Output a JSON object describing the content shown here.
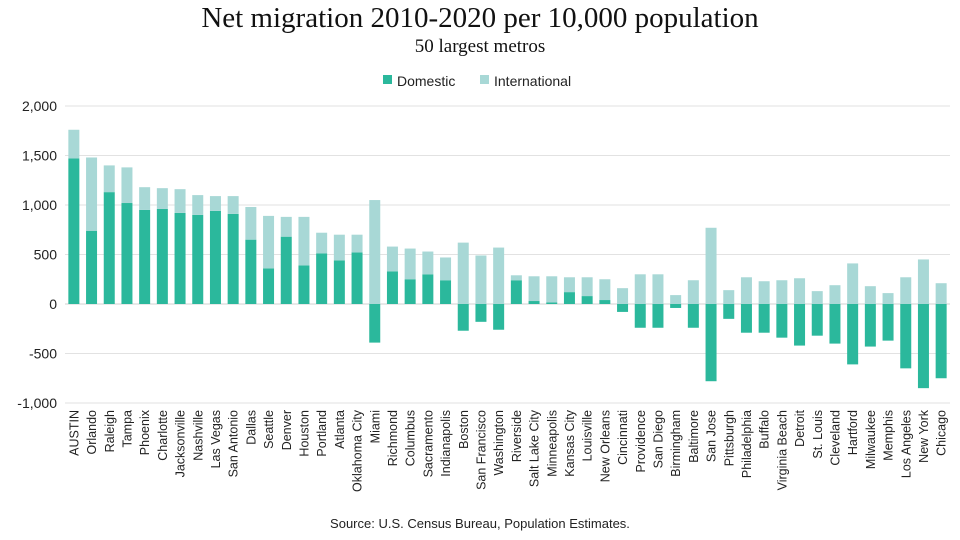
{
  "chart_data": {
    "type": "bar",
    "stacked": true,
    "title": "Net migration 2010-2020 per 10,000 population",
    "subtitle": "50 largest metros",
    "source": "Source:  U.S. Census Bureau, Population Estimates.",
    "xlabel": "",
    "ylabel": "",
    "ylim": [
      -1000,
      2000
    ],
    "yticks": [
      -1000,
      -500,
      0,
      500,
      1000,
      1500,
      2000
    ],
    "ytick_labels": [
      "-1,000",
      "-500",
      "0",
      "500",
      "1,000",
      "1,500",
      "2,000"
    ],
    "grid": true,
    "legend_position": "top-center",
    "categories": [
      "AUSTIN",
      "Orlando",
      "Raleigh",
      "Tampa",
      "Phoenix",
      "Charlotte",
      "Jacksonville",
      "Nashville",
      "Las Vegas",
      "San Antonio",
      "Dallas",
      "Seattle",
      "Denver",
      "Houston",
      "Portland",
      "Atlanta",
      "Oklahoma City",
      "Miami",
      "Richmond",
      "Columbus",
      "Sacramento",
      "Indianapolis",
      "Boston",
      "San Francisco",
      "Washington",
      "Riverside",
      "Salt Lake City",
      "Minneapolis",
      "Kansas City",
      "Louisville",
      "New Orleans",
      "Cincinnati",
      "Providence",
      "San Diego",
      "Birmingham",
      "Baltimore",
      "San Jose",
      "Pittsburgh",
      "Philadelphia",
      "Buffalo",
      "Virginia Beach",
      "Detroit",
      "St. Louis",
      "Cleveland",
      "Hartford",
      "Milwaukee",
      "Memphis",
      "Los Angeles",
      "New York",
      "Chicago"
    ],
    "series": [
      {
        "name": "Domestic",
        "color": "#2bb89c",
        "values": [
          1470,
          740,
          1130,
          1020,
          950,
          960,
          920,
          900,
          940,
          910,
          650,
          360,
          680,
          390,
          510,
          440,
          520,
          -390,
          330,
          250,
          300,
          240,
          -270,
          -180,
          -260,
          240,
          30,
          15,
          120,
          80,
          40,
          -80,
          -240,
          -240,
          -40,
          -240,
          -780,
          -150,
          -290,
          -290,
          -340,
          -420,
          -320,
          -400,
          -610,
          -430,
          -370,
          -650,
          -850,
          -750
        ]
      },
      {
        "name": "International",
        "color": "#a8d8d6",
        "values": [
          290,
          740,
          270,
          360,
          230,
          210,
          240,
          200,
          150,
          180,
          330,
          530,
          200,
          490,
          210,
          260,
          180,
          1050,
          250,
          310,
          230,
          230,
          620,
          490,
          570,
          50,
          250,
          265,
          150,
          190,
          210,
          160,
          300,
          300,
          90,
          240,
          770,
          140,
          270,
          230,
          240,
          260,
          130,
          190,
          410,
          180,
          110,
          270,
          450,
          210
        ]
      }
    ]
  }
}
